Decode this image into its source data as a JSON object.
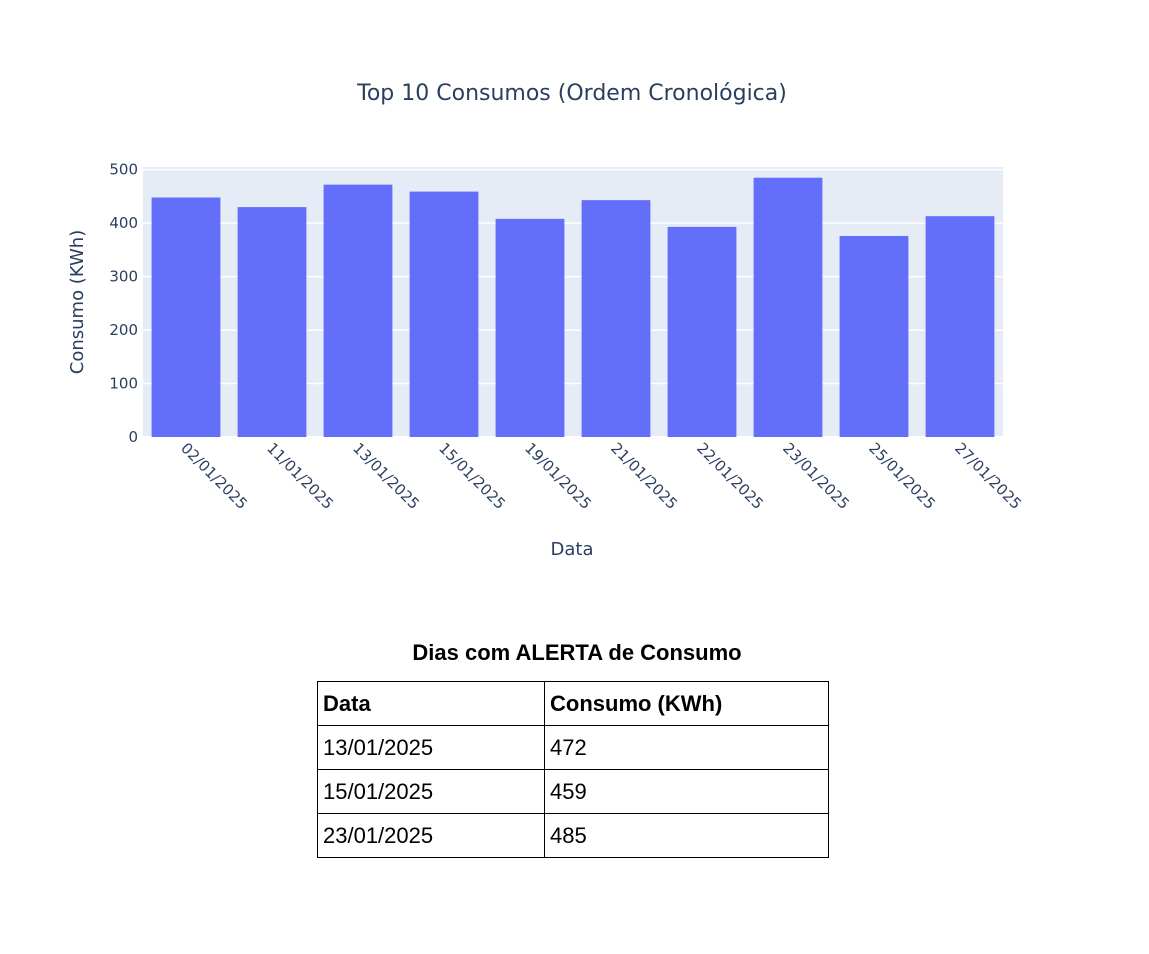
{
  "chart_data": {
    "type": "bar",
    "title": "Top 10 Consumos (Ordem Cronológica)",
    "xlabel": "Data",
    "ylabel": "Consumo (KWh)",
    "ylim": [
      0,
      505
    ],
    "yticks": [
      0,
      100,
      200,
      300,
      400,
      500
    ],
    "grid": true,
    "bar_color": "#636efa",
    "plot_bgcolor": "#e5ecf6",
    "categories": [
      "02/01/2025",
      "11/01/2025",
      "13/01/2025",
      "15/01/2025",
      "19/01/2025",
      "21/01/2025",
      "22/01/2025",
      "23/01/2025",
      "25/01/2025",
      "27/01/2025"
    ],
    "values": [
      448,
      430,
      472,
      459,
      408,
      443,
      393,
      485,
      376,
      413
    ]
  },
  "alert_table": {
    "title": "Dias com ALERTA de Consumo",
    "headers": [
      "Data",
      "Consumo (KWh)"
    ],
    "rows": [
      [
        "13/01/2025",
        "472"
      ],
      [
        "15/01/2025",
        "459"
      ],
      [
        "23/01/2025",
        "485"
      ]
    ]
  }
}
